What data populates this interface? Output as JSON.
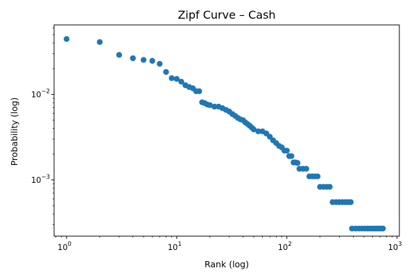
{
  "chart_data": {
    "type": "scatter",
    "title": "Zipf Curve – Cash",
    "xlabel": "Rank (log)",
    "ylabel": "Probability (log)",
    "xscale": "log",
    "yscale": "log",
    "xlim": [
      0.77,
      1050
    ],
    "ylim": [
      0.00022,
      0.065
    ],
    "grid": false,
    "marker_color": "#1f77b4",
    "x_ticks": [
      {
        "base": "10",
        "exp": "0",
        "value": 1
      },
      {
        "base": "10",
        "exp": "1",
        "value": 10
      },
      {
        "base": "10",
        "exp": "2",
        "value": 100
      },
      {
        "base": "10",
        "exp": "3",
        "value": 1000
      }
    ],
    "y_ticks": [
      {
        "base": "10",
        "exp": "−3",
        "value": 0.001
      },
      {
        "base": "10",
        "exp": "−2",
        "value": 0.01
      }
    ],
    "series": [
      {
        "name": "Cash",
        "points": [
          [
            1,
            0.0445
          ],
          [
            2,
            0.041
          ],
          [
            3,
            0.029
          ],
          [
            4,
            0.0265
          ],
          [
            5,
            0.0253
          ],
          [
            6,
            0.0247
          ],
          [
            7,
            0.0228
          ],
          [
            8,
            0.0183
          ],
          [
            9,
            0.0155
          ],
          [
            10,
            0.0152
          ],
          [
            11,
            0.0141
          ],
          [
            12,
            0.0128
          ],
          [
            13,
            0.0122
          ],
          [
            14,
            0.0118
          ],
          [
            15,
            0.0109
          ],
          [
            16,
            0.0109
          ],
          [
            17,
            0.0081
          ],
          [
            18,
            0.0079
          ],
          [
            19,
            0.0076
          ],
          [
            20,
            0.0075
          ],
          [
            22,
            0.0072
          ],
          [
            24,
            0.0072
          ],
          [
            26,
            0.0069
          ],
          [
            28,
            0.0066
          ],
          [
            30,
            0.0063
          ],
          [
            32,
            0.0059
          ],
          [
            34,
            0.0056
          ],
          [
            36,
            0.0053
          ],
          [
            38,
            0.0051
          ],
          [
            40,
            0.005
          ],
          [
            42,
            0.0047
          ],
          [
            44,
            0.0045
          ],
          [
            46,
            0.0043
          ],
          [
            48,
            0.0041
          ],
          [
            50,
            0.0039
          ],
          [
            55,
            0.0037
          ],
          [
            60,
            0.0037
          ],
          [
            65,
            0.0035
          ],
          [
            70,
            0.0032
          ],
          [
            75,
            0.0029
          ],
          [
            80,
            0.0027
          ],
          [
            85,
            0.0025
          ],
          [
            90,
            0.0024
          ],
          [
            95,
            0.0022
          ],
          [
            100,
            0.0022
          ],
          [
            105,
            0.0019
          ],
          [
            110,
            0.0019
          ],
          [
            115,
            0.0016
          ],
          [
            120,
            0.0016
          ],
          [
            125,
            0.00158
          ],
          [
            130,
            0.00135
          ],
          [
            140,
            0.00135
          ],
          [
            150,
            0.00135
          ],
          [
            160,
            0.0011
          ],
          [
            170,
            0.0011
          ],
          [
            180,
            0.0011
          ],
          [
            190,
            0.0011
          ],
          [
            200,
            0.00083
          ],
          [
            215,
            0.00083
          ],
          [
            230,
            0.00083
          ],
          [
            245,
            0.00083
          ],
          [
            260,
            0.00055
          ],
          [
            280,
            0.00055
          ],
          [
            300,
            0.00055
          ],
          [
            320,
            0.00055
          ],
          [
            340,
            0.00055
          ],
          [
            360,
            0.00055
          ],
          [
            380,
            0.00055
          ],
          [
            390,
            0.00027
          ],
          [
            420,
            0.00027
          ],
          [
            450,
            0.00027
          ],
          [
            480,
            0.00027
          ],
          [
            510,
            0.00027
          ],
          [
            540,
            0.00027
          ],
          [
            570,
            0.00027
          ],
          [
            600,
            0.00027
          ],
          [
            630,
            0.00027
          ],
          [
            660,
            0.00027
          ],
          [
            690,
            0.00027
          ],
          [
            720,
            0.00027
          ],
          [
            745,
            0.00027
          ]
        ]
      }
    ]
  }
}
